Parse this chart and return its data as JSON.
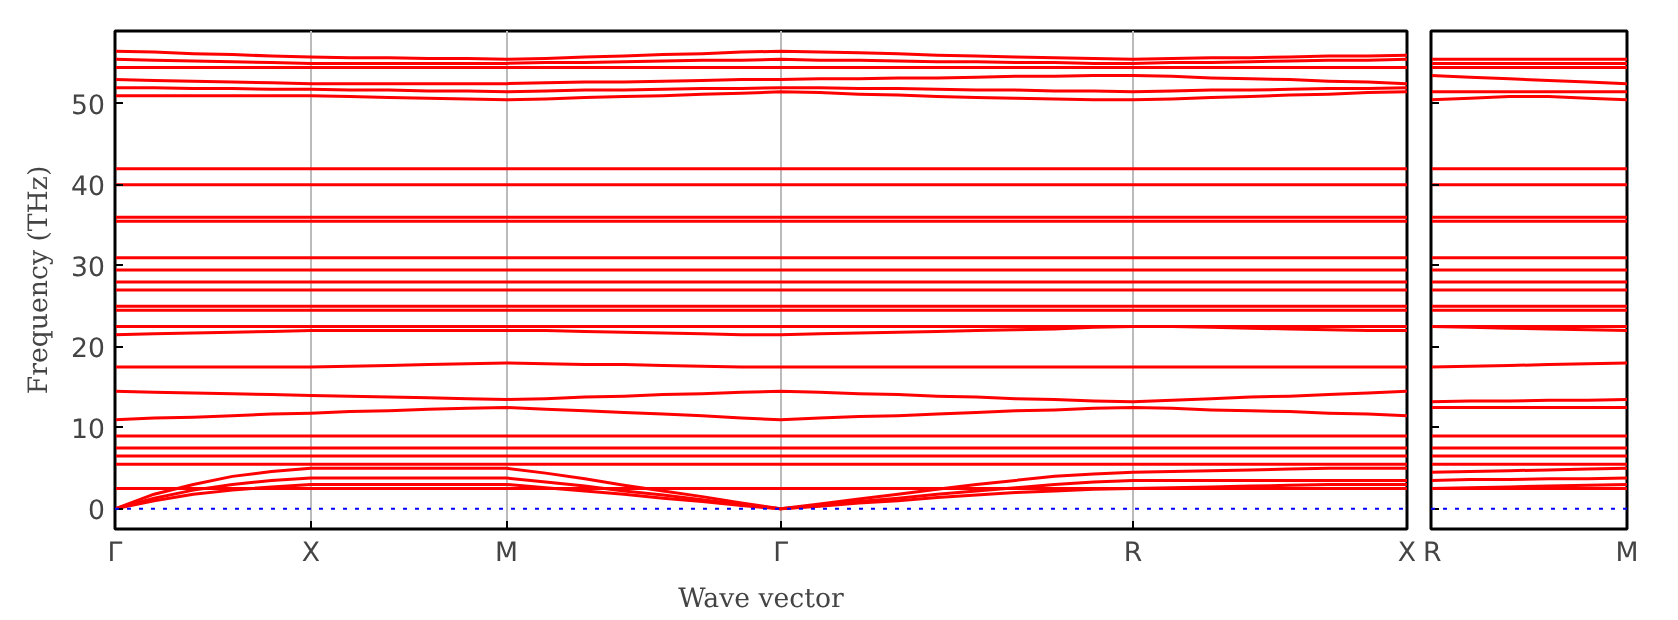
{
  "chart_data": [
    {
      "type": "line",
      "xlabel": "Wave vector",
      "ylabel": "Frequency (THz)",
      "categories": [
        "Γ",
        null,
        null,
        null,
        null,
        "X",
        null,
        null,
        null,
        null,
        "M",
        null,
        null,
        null,
        null,
        null,
        null,
        "Γ",
        null,
        null,
        null,
        null,
        null,
        null,
        null,
        null,
        "R",
        null,
        null,
        null,
        null,
        null,
        null,
        "X"
      ],
      "ylim": [
        -2.5,
        59
      ],
      "yticks": [
        0,
        10,
        20,
        30,
        40,
        50
      ],
      "grid": "x",
      "line_style": "solid",
      "ref_lines": [
        {
          "axis": "y",
          "value": 0,
          "color": "#0000ff",
          "line_style": "dotted"
        }
      ],
      "series": [
        {
          "color": "#ff0000",
          "values": [
            0,
            1,
            1.8,
            2.3,
            2.7,
            3,
            3,
            3,
            3,
            3,
            3,
            2.6,
            2.2,
            1.8,
            1.3,
            0.9,
            0.4,
            0,
            0.3,
            0.7,
            1,
            1.4,
            1.7,
            2,
            2.2,
            2.4,
            2.5,
            2.6,
            2.7,
            2.8,
            2.9,
            3,
            3,
            3
          ]
        },
        {
          "color": "#ff0000",
          "values": [
            0,
            1.3,
            2.3,
            3,
            3.5,
            3.8,
            3.8,
            3.8,
            3.8,
            3.8,
            3.8,
            3.3,
            2.8,
            2.2,
            1.7,
            1.1,
            0.5,
            0,
            0.4,
            0.9,
            1.3,
            1.8,
            2.2,
            2.6,
            3,
            3.3,
            3.5,
            3.5,
            3.5,
            3.5,
            3.5,
            3.5,
            3.5,
            3.5
          ]
        },
        {
          "color": "#ff0000",
          "values": [
            0,
            1.8,
            3,
            4,
            4.6,
            5,
            5,
            5,
            5,
            5,
            5,
            4.4,
            3.7,
            2.9,
            2.2,
            1.5,
            0.7,
            0,
            0.6,
            1.2,
            1.8,
            2.4,
            3,
            3.5,
            4,
            4.3,
            4.5,
            4.6,
            4.7,
            4.8,
            4.9,
            5,
            5,
            5
          ]
        },
        {
          "color": "#ff0000",
          "values": [
            2.5,
            2.5,
            2.5,
            2.5,
            2.5,
            2.5,
            2.5,
            2.5,
            2.5,
            2.5,
            2.5,
            2.5,
            2.5,
            2.5,
            2.5,
            2.5,
            2.5,
            2.5,
            2.5,
            2.5,
            2.5,
            2.5,
            2.5,
            2.5,
            2.5,
            2.5,
            2.5,
            2.5,
            2.5,
            2.5,
            2.5,
            2.5,
            2.5,
            2.5
          ]
        },
        {
          "color": "#ff0000",
          "values": [
            5.5,
            5.5,
            5.5,
            5.5,
            5.5,
            5.5,
            5.5,
            5.5,
            5.5,
            5.5,
            5.5,
            5.5,
            5.5,
            5.5,
            5.5,
            5.5,
            5.5,
            5.5,
            5.5,
            5.5,
            5.5,
            5.5,
            5.5,
            5.5,
            5.5,
            5.5,
            5.5,
            5.5,
            5.5,
            5.5,
            5.5,
            5.5,
            5.5,
            5.5
          ]
        },
        {
          "color": "#ff0000",
          "values": [
            6.5,
            6.5,
            6.5,
            6.5,
            6.5,
            6.5,
            6.5,
            6.5,
            6.5,
            6.5,
            6.5,
            6.5,
            6.5,
            6.5,
            6.5,
            6.5,
            6.5,
            6.5,
            6.5,
            6.5,
            6.5,
            6.5,
            6.5,
            6.5,
            6.5,
            6.5,
            6.5,
            6.5,
            6.5,
            6.5,
            6.5,
            6.5,
            6.5,
            6.5
          ]
        },
        {
          "color": "#ff0000",
          "values": [
            7.5,
            7.5,
            7.5,
            7.5,
            7.5,
            7.5,
            7.5,
            7.5,
            7.5,
            7.5,
            7.5,
            7.5,
            7.5,
            7.5,
            7.5,
            7.5,
            7.5,
            7.5,
            7.5,
            7.5,
            7.5,
            7.5,
            7.5,
            7.5,
            7.5,
            7.5,
            7.5,
            7.5,
            7.5,
            7.5,
            7.5,
            7.5,
            7.5,
            7.5
          ]
        },
        {
          "color": "#ff0000",
          "values": [
            9,
            9,
            9,
            9,
            9,
            9,
            9,
            9,
            9,
            9,
            9,
            9,
            9,
            9,
            9,
            9,
            9,
            9,
            9,
            9,
            9,
            9,
            9,
            9,
            9,
            9,
            9,
            9,
            9,
            9,
            9,
            9,
            9,
            9
          ]
        },
        {
          "color": "#ff0000",
          "values": [
            11,
            11.2,
            11.3,
            11.5,
            11.7,
            11.8,
            12,
            12.1,
            12.3,
            12.4,
            12.5,
            12.3,
            12.1,
            11.9,
            11.7,
            11.5,
            11.2,
            11,
            11.2,
            11.4,
            11.5,
            11.7,
            11.9,
            12.1,
            12.2,
            12.4,
            12.5,
            12.4,
            12.2,
            12.1,
            12,
            11.8,
            11.7,
            11.5
          ]
        },
        {
          "color": "#ff0000",
          "values": [
            14.5,
            14.4,
            14.3,
            14.2,
            14.1,
            14,
            13.9,
            13.8,
            13.7,
            13.6,
            13.5,
            13.6,
            13.8,
            13.9,
            14.1,
            14.2,
            14.4,
            14.5,
            14.4,
            14.2,
            14.1,
            13.9,
            13.8,
            13.6,
            13.5,
            13.3,
            13.2,
            13.4,
            13.6,
            13.8,
            13.9,
            14.1,
            14.3,
            14.5
          ]
        },
        {
          "color": "#ff0000",
          "values": [
            17.5,
            17.5,
            17.5,
            17.5,
            17.5,
            17.5,
            17.6,
            17.7,
            17.8,
            17.9,
            18,
            17.9,
            17.8,
            17.8,
            17.7,
            17.6,
            17.5,
            17.5,
            17.5,
            17.5,
            17.5,
            17.5,
            17.5,
            17.5,
            17.5,
            17.5,
            17.5,
            17.5,
            17.5,
            17.5,
            17.5,
            17.5,
            17.5,
            17.5
          ]
        },
        {
          "color": "#ff0000",
          "values": [
            21.5,
            21.6,
            21.7,
            21.8,
            21.9,
            22,
            22,
            22,
            22,
            22,
            22,
            22,
            21.9,
            21.8,
            21.7,
            21.6,
            21.5,
            21.5,
            21.6,
            21.7,
            21.8,
            21.9,
            22,
            22.1,
            22.2,
            22.4,
            22.5,
            22.5,
            22.4,
            22.3,
            22.2,
            22.1,
            22,
            22
          ]
        },
        {
          "color": "#ff0000",
          "values": [
            22.5,
            22.5,
            22.5,
            22.5,
            22.5,
            22.5,
            22.5,
            22.5,
            22.5,
            22.5,
            22.5,
            22.5,
            22.5,
            22.5,
            22.5,
            22.5,
            22.5,
            22.5,
            22.5,
            22.5,
            22.5,
            22.5,
            22.5,
            22.5,
            22.5,
            22.5,
            22.5,
            22.5,
            22.5,
            22.5,
            22.5,
            22.5,
            22.5,
            22.5
          ]
        },
        {
          "color": "#ff0000",
          "values": [
            24.5,
            24.5,
            24.5,
            24.5,
            24.5,
            24.5,
            24.5,
            24.5,
            24.5,
            24.5,
            24.5,
            24.5,
            24.5,
            24.5,
            24.5,
            24.5,
            24.5,
            24.5,
            24.5,
            24.5,
            24.5,
            24.5,
            24.5,
            24.5,
            24.5,
            24.5,
            24.5,
            24.5,
            24.5,
            24.5,
            24.5,
            24.5,
            24.5,
            24.5
          ]
        },
        {
          "color": "#ff0000",
          "values": [
            25,
            25,
            25,
            25,
            25,
            25,
            25,
            25,
            25,
            25,
            25,
            25,
            25,
            25,
            25,
            25,
            25,
            25,
            25,
            25,
            25,
            25,
            25,
            25,
            25,
            25,
            25,
            25,
            25,
            25,
            25,
            25,
            25,
            25
          ]
        },
        {
          "color": "#ff0000",
          "values": [
            27,
            27,
            27,
            27,
            27,
            27,
            27,
            27,
            27,
            27,
            27,
            27,
            27,
            27,
            27,
            27,
            27,
            27,
            27,
            27,
            27,
            27,
            27,
            27,
            27,
            27,
            27,
            27,
            27,
            27,
            27,
            27,
            27,
            27
          ]
        },
        {
          "color": "#ff0000",
          "values": [
            28,
            28,
            28,
            28,
            28,
            28,
            28,
            28,
            28,
            28,
            28,
            28,
            28,
            28,
            28,
            28,
            28,
            28,
            28,
            28,
            28,
            28,
            28,
            28,
            28,
            28,
            28,
            28,
            28,
            28,
            28,
            28,
            28,
            28
          ]
        },
        {
          "color": "#ff0000",
          "values": [
            29.5,
            29.5,
            29.5,
            29.5,
            29.5,
            29.5,
            29.5,
            29.5,
            29.5,
            29.5,
            29.5,
            29.5,
            29.5,
            29.5,
            29.5,
            29.5,
            29.5,
            29.5,
            29.5,
            29.5,
            29.5,
            29.5,
            29.5,
            29.5,
            29.5,
            29.5,
            29.5,
            29.5,
            29.5,
            29.5,
            29.5,
            29.5,
            29.5,
            29.5
          ]
        },
        {
          "color": "#ff0000",
          "values": [
            31,
            31,
            31,
            31,
            31,
            31,
            31,
            31,
            31,
            31,
            31,
            31,
            31,
            31,
            31,
            31,
            31,
            31,
            31,
            31,
            31,
            31,
            31,
            31,
            31,
            31,
            31,
            31,
            31,
            31,
            31,
            31,
            31,
            31
          ]
        },
        {
          "color": "#ff0000",
          "values": [
            35.5,
            35.5,
            35.5,
            35.5,
            35.5,
            35.5,
            35.5,
            35.5,
            35.5,
            35.5,
            35.5,
            35.5,
            35.5,
            35.5,
            35.5,
            35.5,
            35.5,
            35.5,
            35.5,
            35.5,
            35.5,
            35.5,
            35.5,
            35.5,
            35.5,
            35.5,
            35.5,
            35.5,
            35.5,
            35.5,
            35.5,
            35.5,
            35.5,
            35.5
          ]
        },
        {
          "color": "#ff0000",
          "values": [
            36,
            36,
            36,
            36,
            36,
            36,
            36,
            36,
            36,
            36,
            36,
            36,
            36,
            36,
            36,
            36,
            36,
            36,
            36,
            36,
            36,
            36,
            36,
            36,
            36,
            36,
            36,
            36,
            36,
            36,
            36,
            36,
            36,
            36
          ]
        },
        {
          "color": "#ff0000",
          "values": [
            40,
            40,
            40,
            40,
            40,
            40,
            40,
            40,
            40,
            40,
            40,
            40,
            40,
            40,
            40,
            40,
            40,
            40,
            40,
            40,
            40,
            40,
            40,
            40,
            40,
            40,
            40,
            40,
            40,
            40,
            40,
            40,
            40,
            40
          ]
        },
        {
          "color": "#ff0000",
          "values": [
            42,
            42,
            42,
            42,
            42,
            42,
            42,
            42,
            42,
            42,
            42,
            42,
            42,
            42,
            42,
            42,
            42,
            42,
            42,
            42,
            42,
            42,
            42,
            42,
            42,
            42,
            42,
            42,
            42,
            42,
            42,
            42,
            42,
            42
          ]
        },
        {
          "color": "#ff0000",
          "values": [
            51,
            51,
            51,
            51,
            51,
            51,
            50.9,
            50.8,
            50.7,
            50.6,
            50.5,
            50.6,
            50.8,
            50.9,
            51,
            51.2,
            51.3,
            51.5,
            51.4,
            51.2,
            51.1,
            50.9,
            50.8,
            50.7,
            50.6,
            50.5,
            50.5,
            50.6,
            50.8,
            50.9,
            51.1,
            51.2,
            51.4,
            51.5
          ]
        },
        {
          "color": "#ff0000",
          "values": [
            52,
            52,
            51.9,
            51.9,
            51.8,
            51.8,
            51.7,
            51.7,
            51.6,
            51.6,
            51.5,
            51.6,
            51.7,
            51.7,
            51.8,
            51.9,
            51.9,
            52,
            52,
            51.9,
            51.9,
            51.8,
            51.7,
            51.7,
            51.6,
            51.6,
            51.5,
            51.6,
            51.7,
            51.7,
            51.8,
            51.9,
            51.9,
            52
          ]
        },
        {
          "color": "#ff0000",
          "values": [
            53,
            52.9,
            52.8,
            52.7,
            52.6,
            52.5,
            52.5,
            52.5,
            52.5,
            52.5,
            52.5,
            52.6,
            52.7,
            52.7,
            52.8,
            52.9,
            53,
            53,
            53.1,
            53.1,
            53.2,
            53.2,
            53.3,
            53.4,
            53.4,
            53.5,
            53.5,
            53.4,
            53.2,
            53.1,
            53,
            52.8,
            52.7,
            52.5
          ]
        },
        {
          "color": "#ff0000",
          "values": [
            54.5,
            54.5,
            54.5,
            54.5,
            54.5,
            54.5,
            54.5,
            54.5,
            54.5,
            54.5,
            54.5,
            54.5,
            54.5,
            54.5,
            54.5,
            54.5,
            54.5,
            54.5,
            54.5,
            54.5,
            54.5,
            54.5,
            54.5,
            54.5,
            54.5,
            54.5,
            54.5,
            54.5,
            54.5,
            54.5,
            54.5,
            54.5,
            54.5,
            54.5
          ]
        },
        {
          "color": "#ff0000",
          "values": [
            55.5,
            55.4,
            55.3,
            55.2,
            55.1,
            55,
            55,
            55,
            55,
            55,
            55,
            55.1,
            55.1,
            55.2,
            55.3,
            55.4,
            55.4,
            55.5,
            55.4,
            55.4,
            55.3,
            55.2,
            55.2,
            55.1,
            55.1,
            55,
            55,
            55.1,
            55.1,
            55.2,
            55.3,
            55.4,
            55.4,
            55.5
          ]
        },
        {
          "color": "#ff0000",
          "values": [
            56.5,
            56.4,
            56.2,
            56.1,
            55.9,
            55.8,
            55.7,
            55.7,
            55.6,
            55.6,
            55.5,
            55.6,
            55.8,
            55.9,
            56.1,
            56.2,
            56.4,
            56.5,
            56.4,
            56.3,
            56.2,
            56,
            55.9,
            55.8,
            55.7,
            55.6,
            55.5,
            55.6,
            55.7,
            55.7,
            55.8,
            55.9,
            55.9,
            56
          ]
        }
      ]
    },
    {
      "type": "line",
      "categories": [
        "R",
        null,
        null,
        null,
        null,
        "M"
      ],
      "ylim": [
        -2.5,
        59
      ],
      "yticks": [
        0,
        10,
        20,
        30,
        40,
        50
      ],
      "line_style": "solid",
      "tick_labels": "x",
      "ref_lines": [
        {
          "axis": "y",
          "value": 0,
          "color": "#0000ff",
          "line_style": "dotted"
        }
      ],
      "series": [
        {
          "color": "#ff0000",
          "values": [
            2.5,
            2.6,
            2.7,
            2.8,
            2.9,
            3
          ]
        },
        {
          "color": "#ff0000",
          "values": [
            3.5,
            3.6,
            3.6,
            3.7,
            3.7,
            3.8
          ]
        },
        {
          "color": "#ff0000",
          "values": [
            4.5,
            4.6,
            4.7,
            4.8,
            4.9,
            5
          ]
        },
        {
          "color": "#ff0000",
          "values": [
            2.5,
            2.5,
            2.5,
            2.5,
            2.5,
            2.5
          ]
        },
        {
          "color": "#ff0000",
          "values": [
            5.5,
            5.5,
            5.5,
            5.5,
            5.5,
            5.5
          ]
        },
        {
          "color": "#ff0000",
          "values": [
            6.5,
            6.5,
            6.5,
            6.5,
            6.5,
            6.5
          ]
        },
        {
          "color": "#ff0000",
          "values": [
            7.5,
            7.5,
            7.5,
            7.5,
            7.5,
            7.5
          ]
        },
        {
          "color": "#ff0000",
          "values": [
            9,
            9,
            9,
            9,
            9,
            9
          ]
        },
        {
          "color": "#ff0000",
          "values": [
            12.5,
            12.5,
            12.5,
            12.5,
            12.5,
            12.5
          ]
        },
        {
          "color": "#ff0000",
          "values": [
            13.2,
            13.3,
            13.3,
            13.4,
            13.4,
            13.5
          ]
        },
        {
          "color": "#ff0000",
          "values": [
            17.5,
            17.6,
            17.7,
            17.8,
            17.9,
            18
          ]
        },
        {
          "color": "#ff0000",
          "values": [
            22.5,
            22.4,
            22.3,
            22.2,
            22.1,
            22
          ]
        },
        {
          "color": "#ff0000",
          "values": [
            22.5,
            22.5,
            22.5,
            22.5,
            22.5,
            22.5
          ]
        },
        {
          "color": "#ff0000",
          "values": [
            24.5,
            24.5,
            24.5,
            24.5,
            24.5,
            24.5
          ]
        },
        {
          "color": "#ff0000",
          "values": [
            25,
            25,
            25,
            25,
            25,
            25
          ]
        },
        {
          "color": "#ff0000",
          "values": [
            27,
            27,
            27,
            27,
            27,
            27
          ]
        },
        {
          "color": "#ff0000",
          "values": [
            28,
            28,
            28,
            28,
            28,
            28
          ]
        },
        {
          "color": "#ff0000",
          "values": [
            29.5,
            29.5,
            29.5,
            29.5,
            29.5,
            29.5
          ]
        },
        {
          "color": "#ff0000",
          "values": [
            31,
            31,
            31,
            31,
            31,
            31
          ]
        },
        {
          "color": "#ff0000",
          "values": [
            35.5,
            35.5,
            35.5,
            35.5,
            35.5,
            35.5
          ]
        },
        {
          "color": "#ff0000",
          "values": [
            36,
            36,
            36,
            36,
            36,
            36
          ]
        },
        {
          "color": "#ff0000",
          "values": [
            40,
            40,
            40,
            40,
            40,
            40
          ]
        },
        {
          "color": "#ff0000",
          "values": [
            42,
            42,
            42,
            42,
            42,
            42
          ]
        },
        {
          "color": "#ff0000",
          "values": [
            50.5,
            50.7,
            50.9,
            50.9,
            50.7,
            50.5
          ]
        },
        {
          "color": "#ff0000",
          "values": [
            51.5,
            51.5,
            51.5,
            51.5,
            51.5,
            51.5
          ]
        },
        {
          "color": "#ff0000",
          "values": [
            53.5,
            53.3,
            53.1,
            52.9,
            52.7,
            52.5
          ]
        },
        {
          "color": "#ff0000",
          "values": [
            54.5,
            54.5,
            54.5,
            54.5,
            54.5,
            54.5
          ]
        },
        {
          "color": "#ff0000",
          "values": [
            55,
            55,
            55,
            55,
            55,
            55
          ]
        },
        {
          "color": "#ff0000",
          "values": [
            55.5,
            55.5,
            55.5,
            55.5,
            55.5,
            55.5
          ]
        }
      ]
    }
  ]
}
